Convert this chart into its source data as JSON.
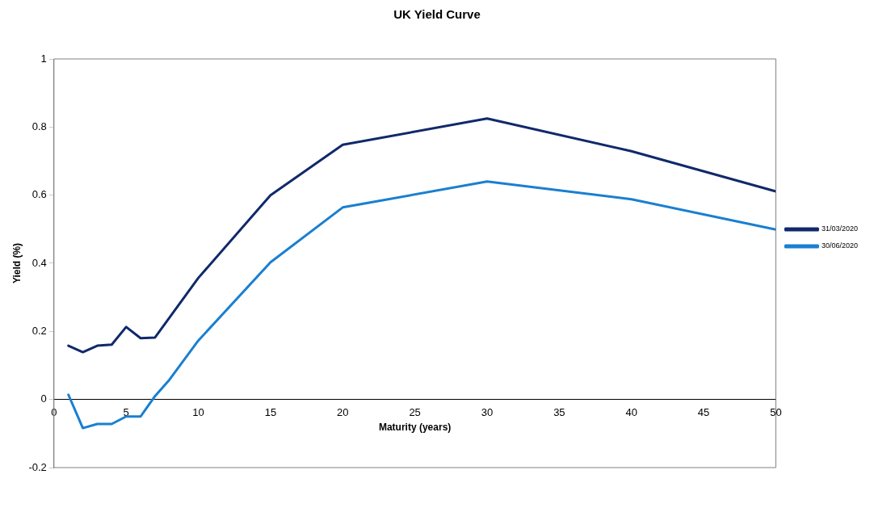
{
  "chart_data": {
    "type": "line",
    "title": "UK Yield Curve",
    "xlabel": "Maturity (years)",
    "ylabel": "Yield (%)",
    "xlim": [
      0,
      50
    ],
    "xticks": [
      0,
      5,
      10,
      15,
      20,
      25,
      30,
      35,
      40,
      45,
      50
    ],
    "ylim": [
      -0.2,
      1
    ],
    "yticks": [
      -0.2,
      0,
      0.2,
      0.4,
      0.6,
      0.8,
      1
    ],
    "grid": false,
    "legend": "right",
    "marker": "none",
    "line_style": "solid",
    "series": [
      {
        "name": "31/03/2020",
        "color": "#10296b",
        "x": [
          1,
          2,
          3,
          4,
          5,
          6,
          7,
          10,
          15,
          20,
          30,
          40,
          50
        ],
        "values": [
          0.158,
          0.139,
          0.158,
          0.161,
          0.213,
          0.18,
          0.182,
          0.357,
          0.6,
          0.748,
          0.825,
          0.729,
          0.611
        ]
      },
      {
        "name": "30/06/2020",
        "color": "#1a7fd1",
        "x": [
          1,
          2,
          3,
          4,
          5,
          6,
          7,
          8,
          10,
          15,
          20,
          30,
          40,
          50
        ],
        "values": [
          0.014,
          -0.084,
          -0.072,
          -0.072,
          -0.05,
          -0.05,
          0.01,
          0.058,
          0.173,
          0.403,
          0.564,
          0.64,
          0.588,
          0.499
        ]
      }
    ]
  }
}
